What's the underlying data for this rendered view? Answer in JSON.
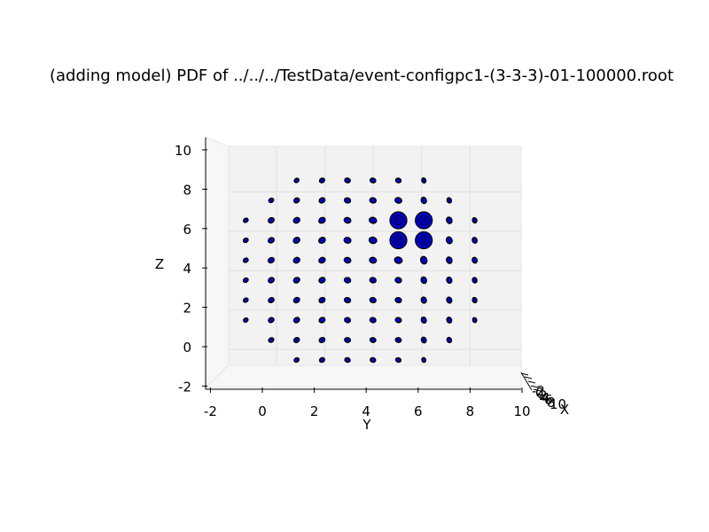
{
  "chart_data": {
    "type": "scatter",
    "projection": "3d",
    "title": "(adding model) PDF of ../../../TestData/event-configpc1-(3-3-3)-01-100000.root",
    "xlabel": "X",
    "ylabel": "Y",
    "zlabel": "Z",
    "xlim": [
      -2,
      10
    ],
    "ylim": [
      -2,
      10
    ],
    "zlim": [
      -2,
      10
    ],
    "x_ticks": [
      "-2",
      "0",
      "2",
      "4",
      "6",
      "8",
      "10"
    ],
    "y_ticks": [
      "-2",
      "0",
      "2",
      "4",
      "6",
      "8",
      "10"
    ],
    "z_ticks": [
      "-2",
      "0",
      "2",
      "4",
      "6",
      "8",
      "10"
    ],
    "grid": true,
    "colors": {
      "marker_fill": "#0000cc",
      "marker_edge": "#000000",
      "pane": "#f2f2f2",
      "grid": "#e0e0e0"
    },
    "points": [
      {
        "y": 1,
        "z": 9,
        "size": 0.22
      },
      {
        "y": 2,
        "z": 9,
        "size": 0.28
      },
      {
        "y": 3,
        "z": 9,
        "size": 0.33
      },
      {
        "y": 4,
        "z": 9,
        "size": 0.33
      },
      {
        "y": 5,
        "z": 9,
        "size": 0.31
      },
      {
        "y": 6,
        "z": 9,
        "size": 0.24
      },
      {
        "y": 0,
        "z": 8,
        "size": 0.25
      },
      {
        "y": 1,
        "z": 8,
        "size": 0.33
      },
      {
        "y": 2,
        "z": 8,
        "size": 0.38
      },
      {
        "y": 3,
        "z": 8,
        "size": 0.4
      },
      {
        "y": 4,
        "z": 8,
        "size": 0.43
      },
      {
        "y": 5,
        "z": 8,
        "size": 0.48
      },
      {
        "y": 6,
        "z": 8,
        "size": 0.42
      },
      {
        "y": 7,
        "z": 8,
        "size": 0.28
      },
      {
        "y": -1,
        "z": 7,
        "size": 0.22
      },
      {
        "y": 0,
        "z": 7,
        "size": 0.38
      },
      {
        "y": 1,
        "z": 7,
        "size": 0.45
      },
      {
        "y": 2,
        "z": 7,
        "size": 0.46
      },
      {
        "y": 3,
        "z": 7,
        "size": 0.48
      },
      {
        "y": 4,
        "z": 7,
        "size": 0.55
      },
      {
        "y": 5,
        "z": 7,
        "size": 1.0
      },
      {
        "y": 6,
        "z": 7,
        "size": 1.0
      },
      {
        "y": 7,
        "z": 7,
        "size": 0.45
      },
      {
        "y": 8,
        "z": 7,
        "size": 0.28
      },
      {
        "y": -1,
        "z": 6,
        "size": 0.25
      },
      {
        "y": 0,
        "z": 6,
        "size": 0.4
      },
      {
        "y": 1,
        "z": 6,
        "size": 0.46
      },
      {
        "y": 2,
        "z": 6,
        "size": 0.48
      },
      {
        "y": 3,
        "z": 6,
        "size": 0.5
      },
      {
        "y": 4,
        "z": 6,
        "size": 0.6
      },
      {
        "y": 5,
        "z": 6,
        "size": 1.0
      },
      {
        "y": 6,
        "z": 6,
        "size": 1.0
      },
      {
        "y": 7,
        "z": 6,
        "size": 0.5
      },
      {
        "y": 8,
        "z": 6,
        "size": 0.35
      },
      {
        "y": -1,
        "z": 5,
        "size": 0.25
      },
      {
        "y": 0,
        "z": 5,
        "size": 0.4
      },
      {
        "y": 1,
        "z": 5,
        "size": 0.45
      },
      {
        "y": 2,
        "z": 5,
        "size": 0.45
      },
      {
        "y": 3,
        "z": 5,
        "size": 0.46
      },
      {
        "y": 4,
        "z": 5,
        "size": 0.5
      },
      {
        "y": 5,
        "z": 5,
        "size": 0.6
      },
      {
        "y": 6,
        "z": 5,
        "size": 0.6
      },
      {
        "y": 7,
        "z": 5,
        "size": 0.45
      },
      {
        "y": 8,
        "z": 5,
        "size": 0.35
      },
      {
        "y": -1,
        "z": 4,
        "size": 0.25
      },
      {
        "y": 0,
        "z": 4,
        "size": 0.38
      },
      {
        "y": 1,
        "z": 4,
        "size": 0.42
      },
      {
        "y": 2,
        "z": 4,
        "size": 0.42
      },
      {
        "y": 3,
        "z": 4,
        "size": 0.42
      },
      {
        "y": 4,
        "z": 4,
        "size": 0.42
      },
      {
        "y": 5,
        "z": 4,
        "size": 0.42
      },
      {
        "y": 6,
        "z": 4,
        "size": 0.45
      },
      {
        "y": 7,
        "z": 4,
        "size": 0.4
      },
      {
        "y": 8,
        "z": 4,
        "size": 0.3
      },
      {
        "y": -1,
        "z": 3,
        "size": 0.22
      },
      {
        "y": 0,
        "z": 3,
        "size": 0.35
      },
      {
        "y": 1,
        "z": 3,
        "size": 0.4
      },
      {
        "y": 2,
        "z": 3,
        "size": 0.4
      },
      {
        "y": 3,
        "z": 3,
        "size": 0.4
      },
      {
        "y": 4,
        "z": 3,
        "size": 0.4
      },
      {
        "y": 5,
        "z": 3,
        "size": 0.4
      },
      {
        "y": 6,
        "z": 3,
        "size": 0.4
      },
      {
        "y": 7,
        "z": 3,
        "size": 0.38
      },
      {
        "y": 8,
        "z": 3,
        "size": 0.28
      },
      {
        "y": -1,
        "z": 2,
        "size": 0.2
      },
      {
        "y": 0,
        "z": 2,
        "size": 0.33
      },
      {
        "y": 1,
        "z": 2,
        "size": 0.38
      },
      {
        "y": 2,
        "z": 2,
        "size": 0.38
      },
      {
        "y": 3,
        "z": 2,
        "size": 0.38
      },
      {
        "y": 4,
        "z": 2,
        "size": 0.38
      },
      {
        "y": 5,
        "z": 2,
        "size": 0.38
      },
      {
        "y": 6,
        "z": 2,
        "size": 0.38
      },
      {
        "y": 7,
        "z": 2,
        "size": 0.35
      },
      {
        "y": 8,
        "z": 2,
        "size": 0.22
      },
      {
        "y": 0,
        "z": 1,
        "size": 0.28
      },
      {
        "y": 1,
        "z": 1,
        "size": 0.33
      },
      {
        "y": 2,
        "z": 1,
        "size": 0.35
      },
      {
        "y": 3,
        "z": 1,
        "size": 0.35
      },
      {
        "y": 4,
        "z": 1,
        "size": 0.35
      },
      {
        "y": 5,
        "z": 1,
        "size": 0.35
      },
      {
        "y": 6,
        "z": 1,
        "size": 0.35
      },
      {
        "y": 7,
        "z": 1,
        "size": 0.28
      },
      {
        "y": 1,
        "z": 0,
        "size": 0.25
      },
      {
        "y": 2,
        "z": 0,
        "size": 0.28
      },
      {
        "y": 3,
        "z": 0,
        "size": 0.3
      },
      {
        "y": 4,
        "z": 0,
        "size": 0.3
      },
      {
        "y": 5,
        "z": 0,
        "size": 0.28
      },
      {
        "y": 6,
        "z": 0,
        "size": 0.2
      }
    ]
  }
}
